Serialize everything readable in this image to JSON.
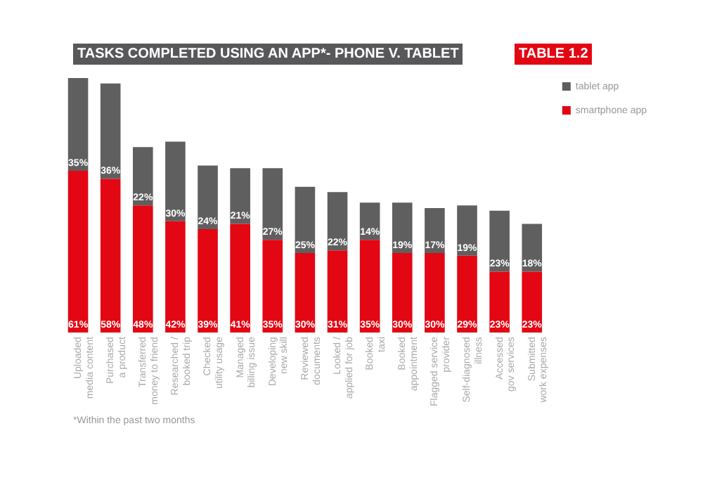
{
  "chart_data": {
    "type": "bar",
    "title": "TASKS COMPLETED USING AN APP*- PHONE V. TABLET",
    "subtitle": "TABLE 1.2",
    "categories": [
      "Uploaded media content",
      "Purchased a product",
      "Transferred money to friend",
      "Researched / booked trip",
      "Checked utility usage",
      "Managed billing issue",
      "Developing new skill",
      "Reviewed documents",
      "Looked / applied for job",
      "Booked taxi",
      "Booked appointment",
      "Flagged service provider",
      "Self-diagnosed illness",
      "Accessed gov services",
      "Submitted work expenses"
    ],
    "series": [
      {
        "name": "smartphone app",
        "color": "#e30613",
        "values": [
          61,
          58,
          48,
          42,
          39,
          41,
          35,
          30,
          31,
          35,
          30,
          30,
          29,
          23,
          23
        ],
        "value_labels": [
          "61%",
          "58%",
          "48%",
          "42%",
          "39%",
          "41%",
          "35%",
          "30%",
          "31%",
          "35%",
          "30%",
          "30%",
          "29%",
          "23%",
          "23%"
        ]
      },
      {
        "name": "tablet app",
        "color": "#5f5f5f",
        "values": [
          35,
          36,
          22,
          30,
          24,
          21,
          27,
          25,
          22,
          14,
          19,
          17,
          19,
          23,
          18
        ],
        "value_labels": [
          "35%",
          "36%",
          "22%",
          "30%",
          "24%",
          "21%",
          "27%",
          "25%",
          "22%",
          "14%",
          "19%",
          "17%",
          "19%",
          "23%",
          "18%"
        ]
      }
    ],
    "stacked": true,
    "tick_labels": "x",
    "legend": "right",
    "annotations": [
      "*Within the past two months"
    ]
  }
}
